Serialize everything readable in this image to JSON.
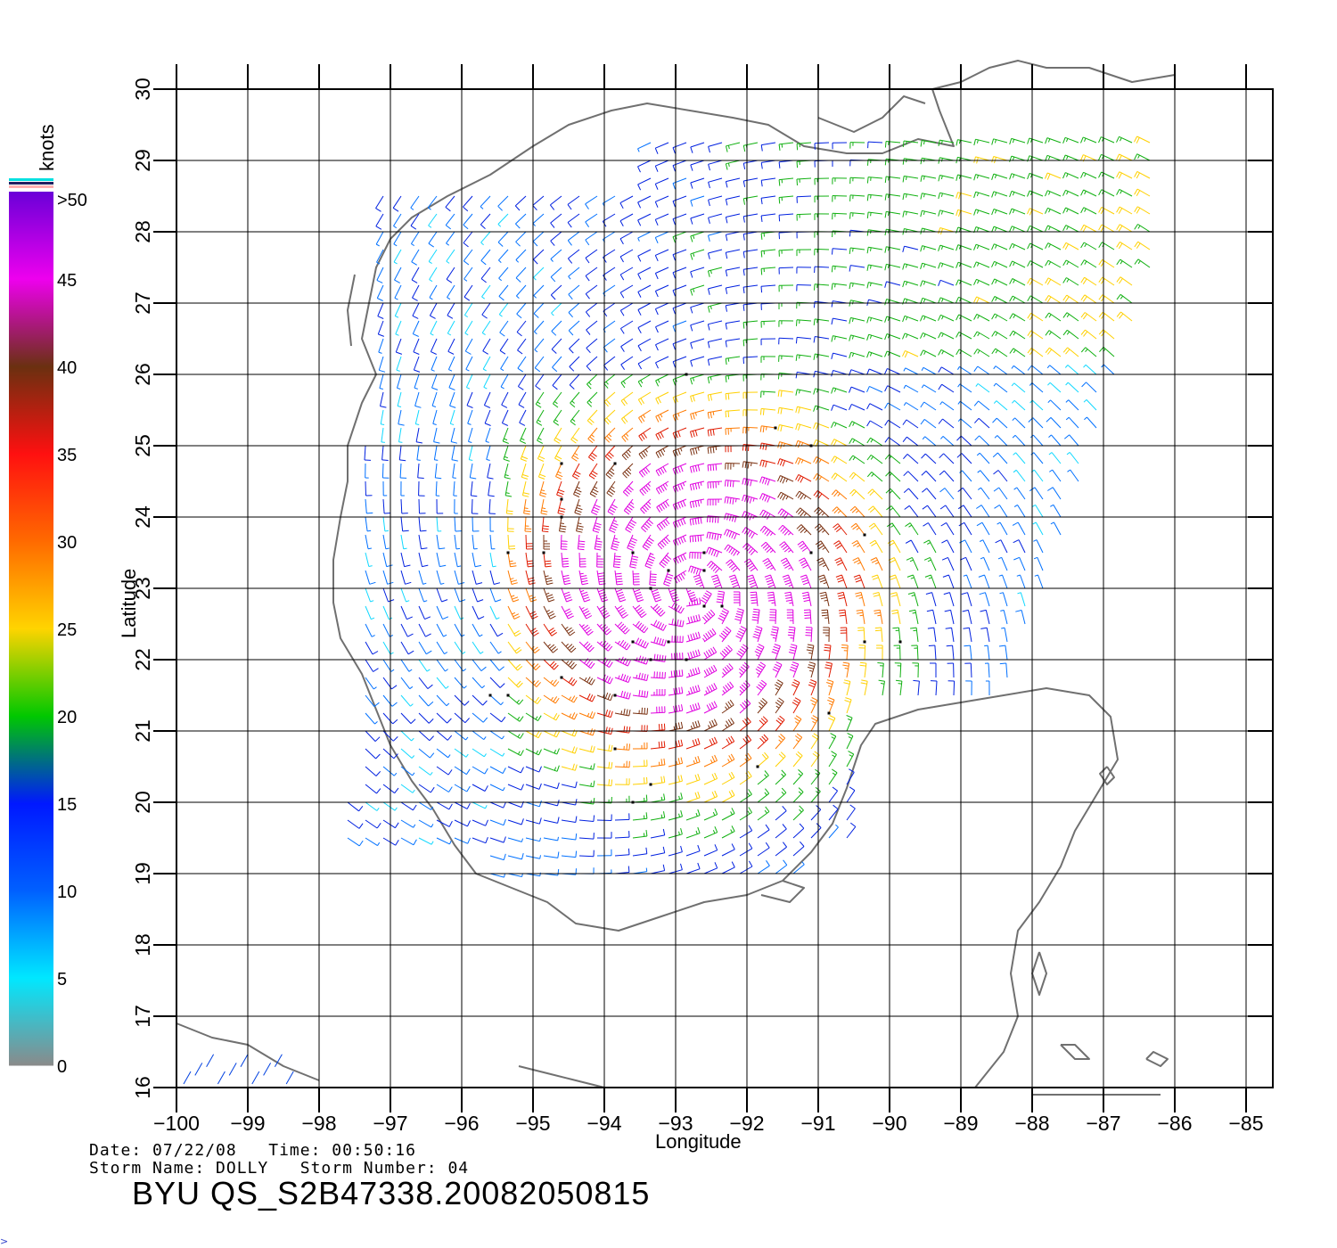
{
  "map": {
    "lon_range": [
      -100,
      -85
    ],
    "lat_range": [
      16,
      30
    ],
    "lon_ticks": [
      -100,
      -99,
      -98,
      -97,
      -96,
      -95,
      -94,
      -93,
      -92,
      -91,
      -90,
      -89,
      -88,
      -87,
      -86,
      -85
    ],
    "lat_ticks": [
      16,
      17,
      18,
      19,
      20,
      21,
      22,
      23,
      24,
      25,
      26,
      27,
      28,
      29,
      30
    ],
    "xlabel": "Longitude",
    "ylabel": "Latitude",
    "grid": true,
    "coastline_color": "#707070",
    "storm_center": {
      "lon": -92.8,
      "lat": 23.0
    },
    "swath_edges": {
      "west_lon": -97.0,
      "east_lon": -87.5
    }
  },
  "colorbar": {
    "title": "knots",
    "top_label": ">50",
    "levels": [
      {
        "value": "0",
        "color": "#8a8a8a"
      },
      {
        "value": "5",
        "color": "#00e8ff"
      },
      {
        "value": "10",
        "color": "#0060ff"
      },
      {
        "value": "15",
        "color": "#0018ff"
      },
      {
        "value": "20",
        "color": "#00c800"
      },
      {
        "value": "25",
        "color": "#ffd400"
      },
      {
        "value": "30",
        "color": "#ff6a00"
      },
      {
        "value": "35",
        "color": "#ff1010"
      },
      {
        "value": "40",
        "color": "#6a3010"
      },
      {
        "value": "45",
        "color": "#ee00ee"
      }
    ],
    "cap_colors": [
      "#00e0e0",
      "#202060",
      "#ffb0b0"
    ]
  },
  "footer": {
    "date_line": "Date: 07/22/08   Time: 00:50:16",
    "storm_line": "Storm Name: DOLLY   Storm Number: 04",
    "product": "BYU QS_S2B47338.20082050815"
  }
}
